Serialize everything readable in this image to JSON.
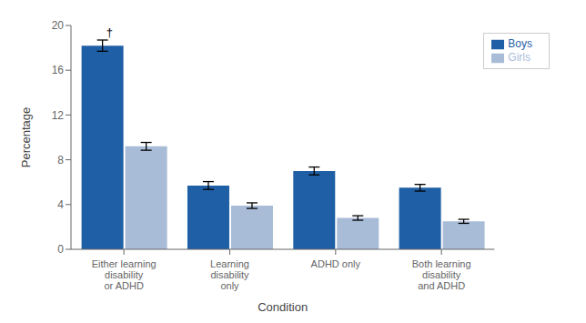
{
  "chart_data": {
    "type": "bar",
    "xlabel": "Condition",
    "ylabel": "Percentage",
    "categories": [
      "Either learning\ndisability\nor ADHD",
      "Learning\ndisability\nonly",
      "ADHD only",
      "Both learning\ndisability\nand ADHD"
    ],
    "series": [
      {
        "name": "Boys",
        "color": "#1f5fa6",
        "values": [
          18.2,
          5.7,
          7.0,
          5.5
        ],
        "errors": [
          0.5,
          0.35,
          0.35,
          0.3
        ]
      },
      {
        "name": "Girls",
        "color": "#a8bcd8",
        "values": [
          9.2,
          3.9,
          2.8,
          2.5
        ],
        "errors": [
          0.35,
          0.25,
          0.2,
          0.18
        ]
      }
    ],
    "ylim": [
      0,
      20
    ],
    "yticks": [
      0,
      4,
      8,
      12,
      16,
      20
    ],
    "grid": false,
    "legend": "upper right",
    "annotations": [
      {
        "text": "†",
        "category": "Either learning\ndisability\nor ADHD",
        "series": "Boys"
      }
    ]
  }
}
